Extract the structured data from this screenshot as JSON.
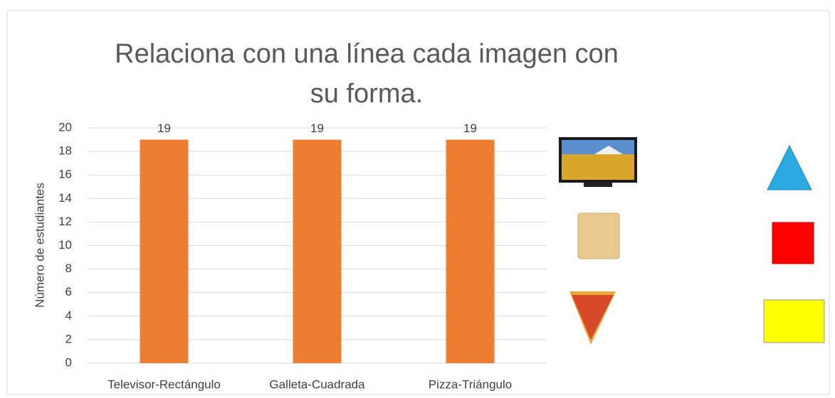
{
  "chart_data": {
    "type": "bar",
    "title": "Relaciona con una línea cada imagen con su forma.",
    "y_label": "Número de estudiantes",
    "categories": [
      "Televisor-Rectángulo",
      "Galleta-Cuadrada",
      "Pizza-Triángulo"
    ],
    "values": [
      19,
      19,
      19
    ],
    "color": "#ed7d31",
    "ylim": [
      0,
      20
    ],
    "yticks": [
      0,
      2,
      4,
      6,
      8,
      10,
      12,
      14,
      16,
      18,
      20
    ],
    "grid": true
  }
}
